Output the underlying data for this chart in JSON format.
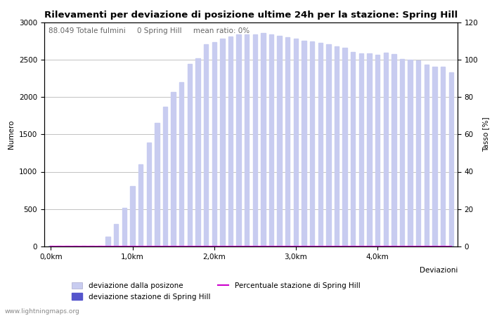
{
  "title": "Rilevamenti per deviazione di posizione ultime 24h per la stazione: Spring Hill",
  "xlabel": "Deviazioni",
  "ylabel_left": "Numero",
  "ylabel_right": "Tasso [%]",
  "info_text": "88.049 Totale fulmini     0 Spring Hill     mean ratio: 0%",
  "watermark": "www.lightningmaps.org",
  "bar_color_light": "#c8ccf0",
  "bar_color_dark": "#5555cc",
  "line_color": "#cc00cc",
  "background_color": "#ffffff",
  "grid_color": "#aaaaaa",
  "ylim_left": [
    0,
    3000
  ],
  "ylim_right": [
    0,
    120
  ],
  "yticks_left": [
    0,
    500,
    1000,
    1500,
    2000,
    2500,
    3000
  ],
  "yticks_right": [
    0,
    20,
    40,
    60,
    80,
    100,
    120
  ],
  "xtick_labels": [
    "0,0km",
    "1,0km",
    "2,0km",
    "3,0km",
    "4,0km"
  ],
  "xtick_positions": [
    0,
    10,
    20,
    30,
    40
  ],
  "bar_width": 0.55,
  "bar_values": [
    5,
    5,
    5,
    5,
    5,
    5,
    5,
    130,
    300,
    520,
    810,
    1100,
    1390,
    1650,
    1870,
    2070,
    2200,
    2440,
    2520,
    2700,
    2730,
    2780,
    2810,
    2840,
    2840,
    2840,
    2850,
    2840,
    2820,
    2800,
    2780,
    2750,
    2740,
    2720,
    2700,
    2680,
    2660,
    2600,
    2580,
    2580,
    2560,
    2590,
    2570,
    2510,
    2500,
    2490,
    2430,
    2400,
    2400,
    2330
  ],
  "station_values": [
    0,
    0,
    0,
    0,
    0,
    0,
    0,
    0,
    0,
    0,
    0,
    0,
    0,
    0,
    0,
    0,
    0,
    0,
    0,
    0,
    0,
    0,
    0,
    0,
    0,
    0,
    0,
    0,
    0,
    0,
    0,
    0,
    0,
    0,
    0,
    0,
    0,
    0,
    0,
    0,
    0,
    0,
    0,
    0,
    0,
    0,
    0,
    0,
    0,
    0
  ],
  "ratio_values": [
    0,
    0,
    0,
    0,
    0,
    0,
    0,
    0,
    0,
    0,
    0,
    0,
    0,
    0,
    0,
    0,
    0,
    0,
    0,
    0,
    0,
    0,
    0,
    0,
    0,
    0,
    0,
    0,
    0,
    0,
    0,
    0,
    0,
    0,
    0,
    0,
    0,
    0,
    0,
    0,
    0,
    0,
    0,
    0,
    0,
    0,
    0,
    0,
    0,
    0
  ],
  "n_bars": 50,
  "figsize": [
    7.0,
    4.5
  ],
  "dpi": 100,
  "title_fontsize": 9.5,
  "label_fontsize": 7.5,
  "tick_fontsize": 7.5,
  "legend_fontsize": 7.5,
  "info_fontsize": 7.5
}
